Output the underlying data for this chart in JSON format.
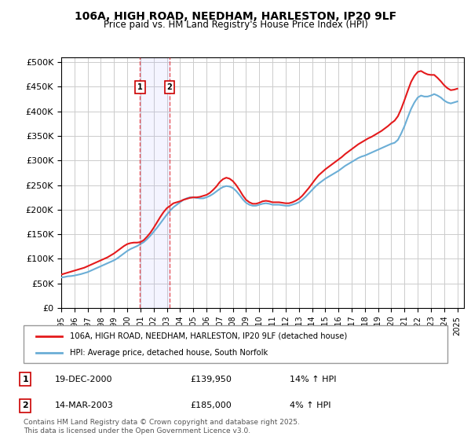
{
  "title": "106A, HIGH ROAD, NEEDHAM, HARLESTON, IP20 9LF",
  "subtitle": "Price paid vs. HM Land Registry's House Price Index (HPI)",
  "ylabel_ticks": [
    "£0",
    "£50K",
    "£100K",
    "£150K",
    "£200K",
    "£250K",
    "£300K",
    "£350K",
    "£400K",
    "£450K",
    "£500K"
  ],
  "ytick_vals": [
    0,
    50000,
    100000,
    150000,
    200000,
    250000,
    300000,
    350000,
    400000,
    450000,
    500000
  ],
  "ylim": [
    0,
    510000
  ],
  "xlim_start": 1995.0,
  "xlim_end": 2025.5,
  "hpi_color": "#6baed6",
  "price_color": "#e41a1c",
  "background_color": "#ffffff",
  "plot_bg_color": "#ffffff",
  "grid_color": "#cccccc",
  "legend_label_red": "106A, HIGH ROAD, NEEDHAM, HARLESTON, IP20 9LF (detached house)",
  "legend_label_blue": "HPI: Average price, detached house, South Norfolk",
  "transaction1_date": "19-DEC-2000",
  "transaction1_price": "£139,950",
  "transaction1_hpi": "14% ↑ HPI",
  "transaction1_year": 2000.97,
  "transaction2_date": "14-MAR-2003",
  "transaction2_price": "£185,000",
  "transaction2_hpi": "4% ↑ HPI",
  "transaction2_year": 2003.21,
  "footer": "Contains HM Land Registry data © Crown copyright and database right 2025.\nThis data is licensed under the Open Government Licence v3.0.",
  "hpi_x": [
    1995.0,
    1995.25,
    1995.5,
    1995.75,
    1996.0,
    1996.25,
    1996.5,
    1996.75,
    1997.0,
    1997.25,
    1997.5,
    1997.75,
    1998.0,
    1998.25,
    1998.5,
    1998.75,
    1999.0,
    1999.25,
    1999.5,
    1999.75,
    2000.0,
    2000.25,
    2000.5,
    2000.75,
    2001.0,
    2001.25,
    2001.5,
    2001.75,
    2002.0,
    2002.25,
    2002.5,
    2002.75,
    2003.0,
    2003.25,
    2003.5,
    2003.75,
    2004.0,
    2004.25,
    2004.5,
    2004.75,
    2005.0,
    2005.25,
    2005.5,
    2005.75,
    2006.0,
    2006.25,
    2006.5,
    2006.75,
    2007.0,
    2007.25,
    2007.5,
    2007.75,
    2008.0,
    2008.25,
    2008.5,
    2008.75,
    2009.0,
    2009.25,
    2009.5,
    2009.75,
    2010.0,
    2010.25,
    2010.5,
    2010.75,
    2011.0,
    2011.25,
    2011.5,
    2011.75,
    2012.0,
    2012.25,
    2012.5,
    2012.75,
    2013.0,
    2013.25,
    2013.5,
    2013.75,
    2014.0,
    2014.25,
    2014.5,
    2014.75,
    2015.0,
    2015.25,
    2015.5,
    2015.75,
    2016.0,
    2016.25,
    2016.5,
    2016.75,
    2017.0,
    2017.25,
    2017.5,
    2017.75,
    2018.0,
    2018.25,
    2018.5,
    2018.75,
    2019.0,
    2019.25,
    2019.5,
    2019.75,
    2020.0,
    2020.25,
    2020.5,
    2020.75,
    2021.0,
    2021.25,
    2021.5,
    2021.75,
    2022.0,
    2022.25,
    2022.5,
    2022.75,
    2023.0,
    2023.25,
    2023.5,
    2023.75,
    2024.0,
    2024.25,
    2024.5,
    2024.75,
    2025.0
  ],
  "hpi_y": [
    62000,
    63000,
    64500,
    65000,
    66000,
    67500,
    69000,
    71000,
    73000,
    76000,
    79000,
    82000,
    85000,
    88000,
    91000,
    94000,
    97000,
    101000,
    106000,
    111000,
    116000,
    120000,
    123000,
    126000,
    130000,
    134000,
    140000,
    147000,
    155000,
    163000,
    172000,
    181000,
    190000,
    198000,
    205000,
    210000,
    215000,
    220000,
    223000,
    225000,
    225000,
    224000,
    223000,
    223000,
    225000,
    228000,
    232000,
    237000,
    242000,
    246000,
    248000,
    247000,
    244000,
    238000,
    230000,
    221000,
    214000,
    210000,
    208000,
    208000,
    210000,
    212000,
    213000,
    212000,
    210000,
    210000,
    210000,
    209000,
    208000,
    208000,
    210000,
    212000,
    215000,
    220000,
    226000,
    233000,
    240000,
    247000,
    253000,
    258000,
    263000,
    267000,
    271000,
    275000,
    279000,
    284000,
    289000,
    293000,
    297000,
    301000,
    305000,
    308000,
    310000,
    313000,
    316000,
    319000,
    322000,
    325000,
    328000,
    331000,
    334000,
    336000,
    342000,
    355000,
    370000,
    388000,
    405000,
    418000,
    428000,
    432000,
    430000,
    430000,
    432000,
    435000,
    432000,
    428000,
    422000,
    418000,
    416000,
    418000,
    420000
  ],
  "price_x": [
    1995.0,
    1995.25,
    1995.5,
    1995.75,
    1996.0,
    1996.25,
    1996.5,
    1996.75,
    1997.0,
    1997.25,
    1997.5,
    1997.75,
    1998.0,
    1998.25,
    1998.5,
    1998.75,
    1999.0,
    1999.25,
    1999.5,
    1999.75,
    2000.0,
    2000.25,
    2000.5,
    2000.75,
    2001.0,
    2001.25,
    2001.5,
    2001.75,
    2002.0,
    2002.25,
    2002.5,
    2002.75,
    2003.0,
    2003.25,
    2003.5,
    2003.75,
    2004.0,
    2004.25,
    2004.5,
    2004.75,
    2005.0,
    2005.25,
    2005.5,
    2005.75,
    2006.0,
    2006.25,
    2006.5,
    2006.75,
    2007.0,
    2007.25,
    2007.5,
    2007.75,
    2008.0,
    2008.25,
    2008.5,
    2008.75,
    2009.0,
    2009.25,
    2009.5,
    2009.75,
    2010.0,
    2010.25,
    2010.5,
    2010.75,
    2011.0,
    2011.25,
    2011.5,
    2011.75,
    2012.0,
    2012.25,
    2012.5,
    2012.75,
    2013.0,
    2013.25,
    2013.5,
    2013.75,
    2014.0,
    2014.25,
    2014.5,
    2014.75,
    2015.0,
    2015.25,
    2015.5,
    2015.75,
    2016.0,
    2016.25,
    2016.5,
    2016.75,
    2017.0,
    2017.25,
    2017.5,
    2017.75,
    2018.0,
    2018.25,
    2018.5,
    2018.75,
    2019.0,
    2019.25,
    2019.5,
    2019.75,
    2020.0,
    2020.25,
    2020.5,
    2020.75,
    2021.0,
    2021.25,
    2021.5,
    2021.75,
    2022.0,
    2022.25,
    2022.5,
    2022.75,
    2023.0,
    2023.25,
    2023.5,
    2023.75,
    2024.0,
    2024.25,
    2024.5,
    2024.75,
    2025.0
  ],
  "price_y": [
    68000,
    70000,
    72000,
    74000,
    76000,
    78000,
    80000,
    82000,
    85000,
    88000,
    91000,
    94000,
    97000,
    100000,
    103000,
    107000,
    111000,
    116000,
    121000,
    126000,
    130000,
    132000,
    133000,
    133000,
    134000,
    138000,
    145000,
    153000,
    163000,
    174000,
    185000,
    195000,
    203000,
    208000,
    213000,
    215000,
    217000,
    220000,
    222000,
    224000,
    225000,
    225000,
    226000,
    228000,
    230000,
    234000,
    240000,
    247000,
    256000,
    262000,
    265000,
    263000,
    258000,
    250000,
    240000,
    229000,
    220000,
    215000,
    212000,
    212000,
    214000,
    217000,
    218000,
    217000,
    215000,
    215000,
    215000,
    214000,
    213000,
    213000,
    215000,
    218000,
    222000,
    228000,
    236000,
    244000,
    253000,
    262000,
    270000,
    276000,
    282000,
    287000,
    292000,
    297000,
    302000,
    307000,
    313000,
    318000,
    323000,
    328000,
    333000,
    337000,
    341000,
    345000,
    348000,
    352000,
    356000,
    360000,
    365000,
    370000,
    376000,
    381000,
    390000,
    405000,
    423000,
    442000,
    460000,
    472000,
    480000,
    482000,
    478000,
    475000,
    474000,
    474000,
    468000,
    461000,
    453000,
    447000,
    443000,
    444000,
    446000
  ]
}
